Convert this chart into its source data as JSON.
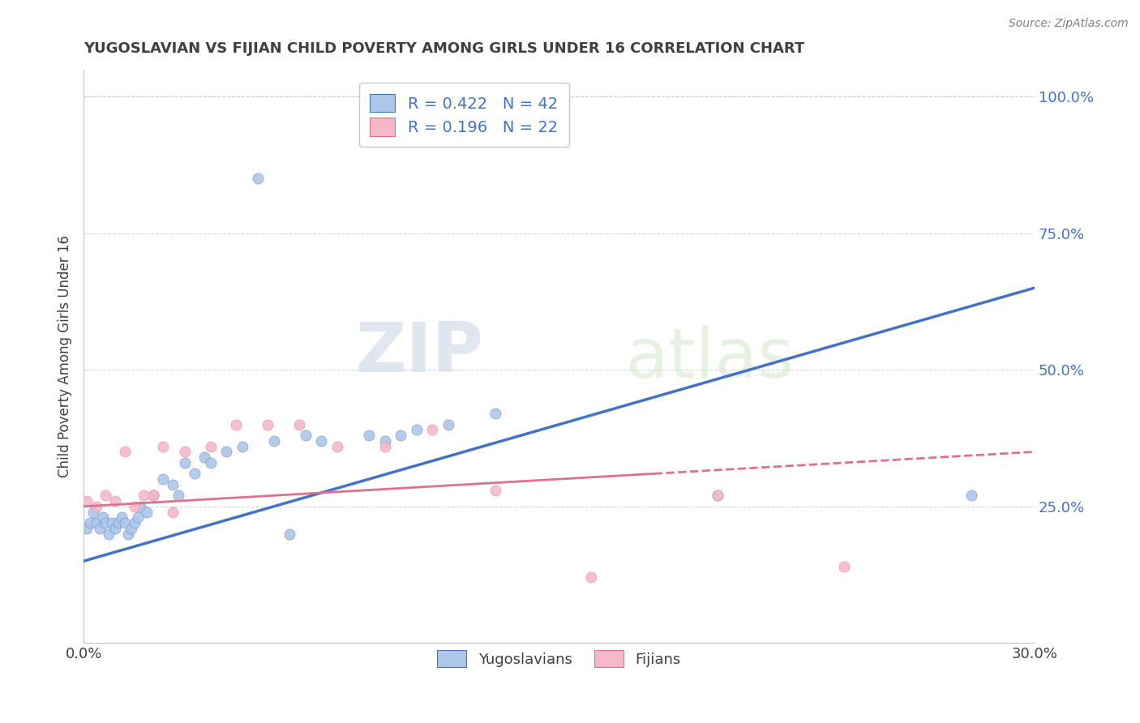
{
  "title": "YUGOSLAVIAN VS FIJIAN CHILD POVERTY AMONG GIRLS UNDER 16 CORRELATION CHART",
  "source": "Source: ZipAtlas.com",
  "ylabel": "Child Poverty Among Girls Under 16",
  "xlim": [
    0.0,
    0.3
  ],
  "ylim": [
    0.0,
    1.05
  ],
  "ytick_vals": [
    0.25,
    0.5,
    0.75,
    1.0
  ],
  "ytick_labels": [
    "25.0%",
    "50.0%",
    "75.0%",
    "100.0%"
  ],
  "xtick_vals": [
    0.0,
    0.3
  ],
  "xtick_labels": [
    "0.0%",
    "30.0%"
  ],
  "watermark_zip": "ZIP",
  "watermark_atlas": "atlas",
  "legend_r1": "R = 0.422   N = 42",
  "legend_r2": "R = 0.196   N = 22",
  "legend_label1": "Yugoslavians",
  "legend_label2": "Fijians",
  "color_yugo_fill": "#aec6e8",
  "color_fiji_fill": "#f4b8c8",
  "color_yugo_edge": "#4472c4",
  "color_fiji_edge": "#e07090",
  "color_yugo_line": "#4472c4",
  "color_fiji_line": "#e07090",
  "yugo_x": [
    0.001,
    0.002,
    0.003,
    0.004,
    0.005,
    0.006,
    0.007,
    0.008,
    0.009,
    0.01,
    0.011,
    0.012,
    0.013,
    0.014,
    0.015,
    0.016,
    0.017,
    0.018,
    0.02,
    0.022,
    0.025,
    0.028,
    0.03,
    0.032,
    0.035,
    0.038,
    0.04,
    0.045,
    0.05,
    0.055,
    0.06,
    0.065,
    0.07,
    0.075,
    0.09,
    0.095,
    0.1,
    0.105,
    0.115,
    0.13,
    0.2,
    0.28
  ],
  "yugo_y": [
    0.21,
    0.22,
    0.24,
    0.22,
    0.21,
    0.23,
    0.22,
    0.2,
    0.22,
    0.21,
    0.22,
    0.23,
    0.22,
    0.2,
    0.21,
    0.22,
    0.23,
    0.25,
    0.24,
    0.27,
    0.3,
    0.29,
    0.27,
    0.33,
    0.31,
    0.34,
    0.33,
    0.35,
    0.36,
    0.85,
    0.37,
    0.2,
    0.38,
    0.37,
    0.38,
    0.37,
    0.38,
    0.39,
    0.4,
    0.42,
    0.27,
    0.27
  ],
  "fiji_x": [
    0.001,
    0.004,
    0.007,
    0.01,
    0.013,
    0.016,
    0.019,
    0.022,
    0.025,
    0.028,
    0.032,
    0.04,
    0.048,
    0.058,
    0.068,
    0.08,
    0.095,
    0.11,
    0.13,
    0.16,
    0.2,
    0.24
  ],
  "fiji_y": [
    0.26,
    0.25,
    0.27,
    0.26,
    0.35,
    0.25,
    0.27,
    0.27,
    0.36,
    0.24,
    0.35,
    0.36,
    0.4,
    0.4,
    0.4,
    0.36,
    0.36,
    0.39,
    0.28,
    0.12,
    0.27,
    0.14
  ],
  "background_color": "#ffffff",
  "grid_color": "#c8c8d4",
  "title_color": "#404040"
}
